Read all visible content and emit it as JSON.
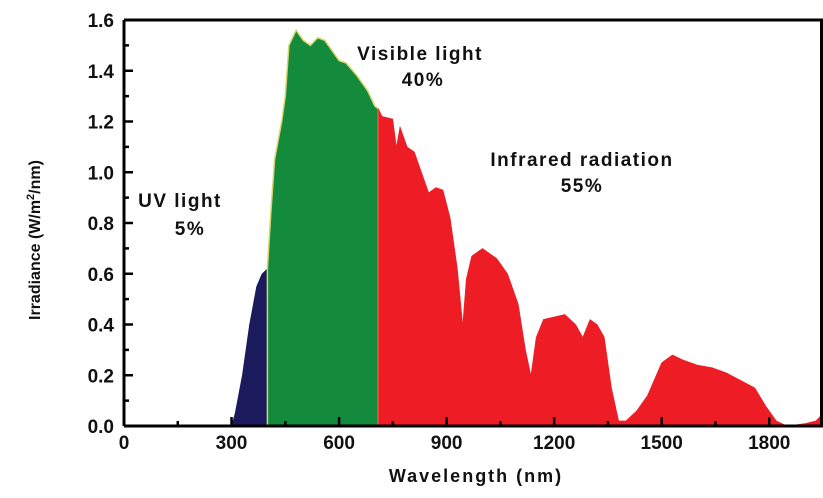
{
  "chart_data": {
    "type": "area",
    "xlabel": "Wavelength (nm)",
    "ylabel_prefix": "Irradiance (W/m",
    "ylabel_sup": "2",
    "ylabel_suffix": "/nm)",
    "xlim": [
      0,
      1950
    ],
    "ylim": [
      0,
      1.6
    ],
    "x_ticks": [
      0,
      300,
      600,
      900,
      1200,
      1500,
      1800
    ],
    "x_tick_labels": [
      "0",
      "300",
      "600",
      "900",
      "1200",
      "1500",
      "1800"
    ],
    "y_ticks": [
      0.0,
      0.2,
      0.4,
      0.6,
      0.8,
      1.0,
      1.2,
      1.4,
      1.6
    ],
    "y_tick_labels": [
      "0.0",
      "0.2",
      "0.4",
      "0.6",
      "0.8",
      "1.0",
      "1.2",
      "1.4",
      "1.6"
    ],
    "grid": false,
    "spectrum": [
      [
        300,
        0.0
      ],
      [
        310,
        0.05
      ],
      [
        330,
        0.2
      ],
      [
        350,
        0.4
      ],
      [
        370,
        0.55
      ],
      [
        385,
        0.6
      ],
      [
        400,
        0.62
      ],
      [
        410,
        0.85
      ],
      [
        420,
        1.05
      ],
      [
        440,
        1.2
      ],
      [
        450,
        1.3
      ],
      [
        460,
        1.5
      ],
      [
        480,
        1.56
      ],
      [
        500,
        1.52
      ],
      [
        520,
        1.5
      ],
      [
        540,
        1.53
      ],
      [
        560,
        1.52
      ],
      [
        580,
        1.48
      ],
      [
        600,
        1.44
      ],
      [
        620,
        1.43
      ],
      [
        650,
        1.38
      ],
      [
        680,
        1.32
      ],
      [
        700,
        1.26
      ],
      [
        710,
        1.25
      ],
      [
        720,
        1.22
      ],
      [
        750,
        1.21
      ],
      [
        760,
        1.1
      ],
      [
        770,
        1.18
      ],
      [
        790,
        1.1
      ],
      [
        810,
        1.08
      ],
      [
        830,
        1.0
      ],
      [
        850,
        0.92
      ],
      [
        870,
        0.94
      ],
      [
        890,
        0.93
      ],
      [
        910,
        0.82
      ],
      [
        930,
        0.62
      ],
      [
        945,
        0.4
      ],
      [
        955,
        0.58
      ],
      [
        970,
        0.67
      ],
      [
        1000,
        0.7
      ],
      [
        1040,
        0.66
      ],
      [
        1070,
        0.6
      ],
      [
        1100,
        0.48
      ],
      [
        1120,
        0.3
      ],
      [
        1135,
        0.2
      ],
      [
        1150,
        0.35
      ],
      [
        1170,
        0.42
      ],
      [
        1200,
        0.43
      ],
      [
        1230,
        0.44
      ],
      [
        1260,
        0.4
      ],
      [
        1280,
        0.35
      ],
      [
        1300,
        0.42
      ],
      [
        1320,
        0.4
      ],
      [
        1340,
        0.35
      ],
      [
        1360,
        0.15
      ],
      [
        1380,
        0.02
      ],
      [
        1400,
        0.02
      ],
      [
        1430,
        0.06
      ],
      [
        1460,
        0.12
      ],
      [
        1500,
        0.25
      ],
      [
        1530,
        0.28
      ],
      [
        1560,
        0.26
      ],
      [
        1600,
        0.24
      ],
      [
        1640,
        0.23
      ],
      [
        1680,
        0.21
      ],
      [
        1720,
        0.18
      ],
      [
        1760,
        0.15
      ],
      [
        1790,
        0.08
      ],
      [
        1820,
        0.02
      ],
      [
        1850,
        0.0
      ],
      [
        1900,
        0.01
      ],
      [
        1930,
        0.02
      ],
      [
        1950,
        0.05
      ]
    ],
    "regions": [
      {
        "from": 300,
        "to": 400,
        "color": "#1a1a5c"
      },
      {
        "from": 400,
        "to": 710,
        "color": "#138a3c",
        "edge": "#d4d66a"
      },
      {
        "from": 710,
        "to": 1950,
        "color": "#ee1c24"
      }
    ],
    "annotations": {
      "uv_line1": "UV light",
      "uv_line2": "5%",
      "visible_line1": "Visible light",
      "visible_line2": "40%",
      "ir_line1": "Infrared radiation",
      "ir_line2": "55%"
    }
  }
}
